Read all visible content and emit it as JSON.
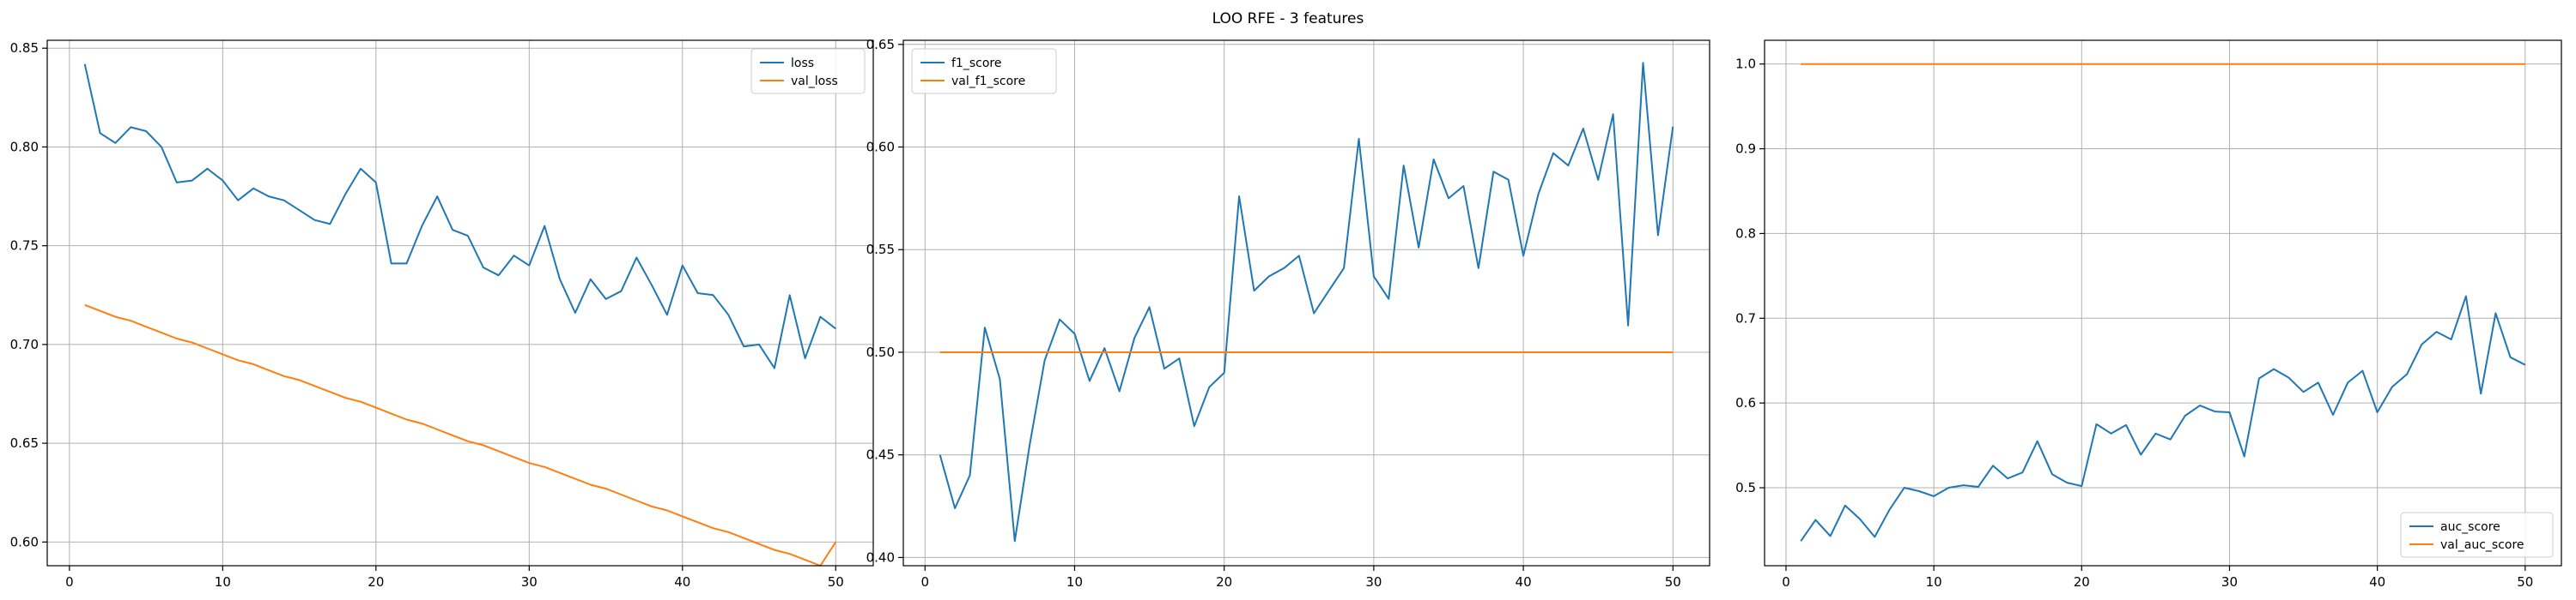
{
  "figure_title": "LOO RFE - 3 features",
  "colors": {
    "series_1": "#1f77b4",
    "series_2": "#ff7f0e",
    "grid": "#b0b0b0",
    "axis": "#000000"
  },
  "chart_data": [
    {
      "type": "line",
      "title": "",
      "xlabel": "",
      "ylabel": "",
      "xlim": [
        -1.45,
        52.45
      ],
      "ylim": [
        0.588,
        0.854
      ],
      "xticks": [
        0,
        10,
        20,
        30,
        40,
        50
      ],
      "yticks": [
        0.6,
        0.65,
        0.7,
        0.75,
        0.8,
        0.85
      ],
      "ytick_labels": [
        "0.60",
        "0.65",
        "0.70",
        "0.75",
        "0.80",
        "0.85"
      ],
      "grid": true,
      "legend_position": "top-right",
      "x": [
        1,
        2,
        3,
        4,
        5,
        6,
        7,
        8,
        9,
        10,
        11,
        12,
        13,
        14,
        15,
        16,
        17,
        18,
        19,
        20,
        21,
        22,
        23,
        24,
        25,
        26,
        27,
        28,
        29,
        30,
        31,
        32,
        33,
        34,
        35,
        36,
        37,
        38,
        39,
        40,
        41,
        42,
        43,
        44,
        45,
        46,
        47,
        48,
        49,
        50
      ],
      "series": [
        {
          "name": "loss",
          "color": "#1f77b4",
          "values": [
            0.842,
            0.807,
            0.802,
            0.81,
            0.808,
            0.8,
            0.782,
            0.783,
            0.789,
            0.783,
            0.773,
            0.779,
            0.775,
            0.773,
            0.768,
            0.763,
            0.761,
            0.776,
            0.789,
            0.782,
            0.741,
            0.741,
            0.76,
            0.775,
            0.758,
            0.755,
            0.739,
            0.735,
            0.745,
            0.74,
            0.76,
            0.733,
            0.716,
            0.733,
            0.723,
            0.727,
            0.744,
            0.73,
            0.715,
            0.74,
            0.726,
            0.725,
            0.715,
            0.699,
            0.7,
            0.688,
            0.725,
            0.693,
            0.714,
            0.708
          ]
        },
        {
          "name": "val_loss",
          "color": "#ff7f0e",
          "values": [
            0.72,
            0.717,
            0.714,
            0.712,
            0.709,
            0.706,
            0.703,
            0.701,
            0.698,
            0.695,
            0.692,
            0.69,
            0.687,
            0.684,
            0.682,
            0.679,
            0.676,
            0.673,
            0.671,
            0.668,
            0.665,
            0.662,
            0.66,
            0.657,
            0.654,
            0.651,
            0.649,
            0.646,
            0.643,
            0.64,
            0.638,
            0.635,
            0.632,
            0.629,
            0.627,
            0.624,
            0.621,
            0.618,
            0.616,
            0.613,
            0.61,
            0.607,
            0.605,
            0.602,
            0.599,
            0.596,
            0.594,
            0.591,
            0.588,
            0.6
          ]
        }
      ]
    },
    {
      "type": "line",
      "title": "",
      "xlabel": "",
      "ylabel": "",
      "xlim": [
        -1.45,
        52.45
      ],
      "ylim": [
        0.396,
        0.652
      ],
      "xticks": [
        0,
        10,
        20,
        30,
        40,
        50
      ],
      "yticks": [
        0.4,
        0.45,
        0.5,
        0.55,
        0.6,
        0.65
      ],
      "ytick_labels": [
        "0.40",
        "0.45",
        "0.50",
        "0.55",
        "0.60",
        "0.65"
      ],
      "grid": true,
      "legend_position": "top-left",
      "x": [
        1,
        2,
        3,
        4,
        5,
        6,
        7,
        8,
        9,
        10,
        11,
        12,
        13,
        14,
        15,
        16,
        17,
        18,
        19,
        20,
        21,
        22,
        23,
        24,
        25,
        26,
        27,
        28,
        29,
        30,
        31,
        32,
        33,
        34,
        35,
        36,
        37,
        38,
        39,
        40,
        41,
        42,
        43,
        44,
        45,
        46,
        47,
        48,
        49,
        50
      ],
      "series": [
        {
          "name": "f1_score",
          "color": "#1f77b4",
          "values": [
            0.45,
            0.424,
            0.44,
            0.512,
            0.487,
            0.408,
            0.455,
            0.496,
            0.516,
            0.509,
            0.486,
            0.502,
            0.481,
            0.507,
            0.522,
            0.492,
            0.497,
            0.464,
            0.483,
            0.49,
            0.576,
            0.53,
            0.537,
            0.541,
            0.547,
            0.519,
            0.53,
            0.541,
            0.604,
            0.537,
            0.526,
            0.591,
            0.551,
            0.594,
            0.575,
            0.581,
            0.541,
            0.588,
            0.584,
            0.547,
            0.577,
            0.597,
            0.591,
            0.609,
            0.584,
            0.616,
            0.513,
            0.641,
            0.557,
            0.61
          ]
        },
        {
          "name": "val_f1_score",
          "color": "#ff7f0e",
          "values": [
            0.5,
            0.5,
            0.5,
            0.5,
            0.5,
            0.5,
            0.5,
            0.5,
            0.5,
            0.5,
            0.5,
            0.5,
            0.5,
            0.5,
            0.5,
            0.5,
            0.5,
            0.5,
            0.5,
            0.5,
            0.5,
            0.5,
            0.5,
            0.5,
            0.5,
            0.5,
            0.5,
            0.5,
            0.5,
            0.5,
            0.5,
            0.5,
            0.5,
            0.5,
            0.5,
            0.5,
            0.5,
            0.5,
            0.5,
            0.5,
            0.5,
            0.5,
            0.5,
            0.5,
            0.5,
            0.5,
            0.5,
            0.5,
            0.5,
            0.5
          ]
        }
      ]
    },
    {
      "type": "line",
      "title": "",
      "xlabel": "",
      "ylabel": "",
      "xlim": [
        -1.45,
        52.45
      ],
      "ylim": [
        0.408,
        1.028
      ],
      "xticks": [
        0,
        10,
        20,
        30,
        40,
        50
      ],
      "yticks": [
        0.5,
        0.6,
        0.7,
        0.8,
        0.9,
        1.0
      ],
      "ytick_labels": [
        "0.5",
        "0.6",
        "0.7",
        "0.8",
        "0.9",
        "1.0"
      ],
      "grid": true,
      "legend_position": "bottom-right",
      "x": [
        1,
        2,
        3,
        4,
        5,
        6,
        7,
        8,
        9,
        10,
        11,
        12,
        13,
        14,
        15,
        16,
        17,
        18,
        19,
        20,
        21,
        22,
        23,
        24,
        25,
        26,
        27,
        28,
        29,
        30,
        31,
        32,
        33,
        34,
        35,
        36,
        37,
        38,
        39,
        40,
        41,
        42,
        43,
        44,
        45,
        46,
        47,
        48,
        49,
        50
      ],
      "series": [
        {
          "name": "auc_score",
          "color": "#1f77b4",
          "values": [
            0.437,
            0.462,
            0.443,
            0.479,
            0.463,
            0.442,
            0.474,
            0.5,
            0.496,
            0.49,
            0.5,
            0.503,
            0.501,
            0.526,
            0.511,
            0.518,
            0.555,
            0.516,
            0.506,
            0.502,
            0.575,
            0.564,
            0.574,
            0.539,
            0.564,
            0.557,
            0.585,
            0.597,
            0.59,
            0.589,
            0.537,
            0.629,
            0.64,
            0.63,
            0.613,
            0.624,
            0.586,
            0.624,
            0.638,
            0.589,
            0.619,
            0.634,
            0.669,
            0.684,
            0.675,
            0.726,
            0.611,
            0.706,
            0.654,
            0.645
          ]
        },
        {
          "name": "val_auc_score",
          "color": "#ff7f0e",
          "values": [
            1.0,
            1.0,
            1.0,
            1.0,
            1.0,
            1.0,
            1.0,
            1.0,
            1.0,
            1.0,
            1.0,
            1.0,
            1.0,
            1.0,
            1.0,
            1.0,
            1.0,
            1.0,
            1.0,
            1.0,
            1.0,
            1.0,
            1.0,
            1.0,
            1.0,
            1.0,
            1.0,
            1.0,
            1.0,
            1.0,
            1.0,
            1.0,
            1.0,
            1.0,
            1.0,
            1.0,
            1.0,
            1.0,
            1.0,
            1.0,
            1.0,
            1.0,
            1.0,
            1.0,
            1.0,
            1.0,
            1.0,
            1.0,
            1.0,
            1.0
          ]
        }
      ]
    }
  ]
}
